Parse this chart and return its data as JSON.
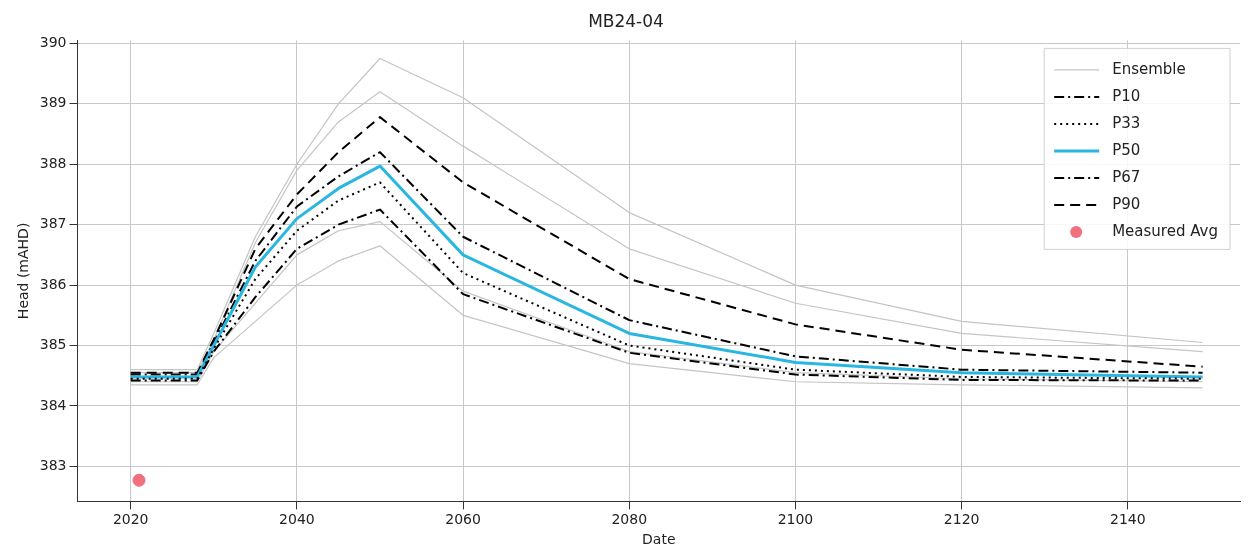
{
  "chart_data": {
    "type": "line",
    "title": "MB24-04",
    "xlabel": "Date",
    "ylabel": "Head (mAHD)",
    "x": [
      2020,
      2028,
      2030,
      2035,
      2040,
      2045,
      2050,
      2060,
      2080,
      2100,
      2120,
      2149
    ],
    "xlim": [
      2013.6,
      2153.5
    ],
    "xticks": [
      2020,
      2040,
      2060,
      2080,
      2100,
      2120,
      2140
    ],
    "ylim": [
      382.42,
      390.05
    ],
    "yticks": [
      383,
      384,
      385,
      386,
      387,
      388,
      389,
      390
    ],
    "grid": true,
    "legend": "top right",
    "series": [
      {
        "name": "Ensemble",
        "color": "#c4c4c4",
        "line_style": "solid",
        "values": [
          384.6,
          384.6,
          385.2,
          386.8,
          388.0,
          389.0,
          389.75,
          389.1,
          387.2,
          386.0,
          385.4,
          385.05
        ]
      },
      {
        "color": "#c4c4c4",
        "line_style": "solid",
        "values": [
          384.55,
          384.55,
          385.1,
          386.7,
          387.9,
          388.7,
          389.2,
          388.3,
          386.6,
          385.7,
          385.2,
          384.9
        ]
      },
      {
        "color": "#c4c4c4",
        "line_style": "solid",
        "values": [
          384.4,
          384.4,
          384.9,
          385.7,
          386.5,
          386.9,
          387.05,
          385.9,
          384.9,
          384.55,
          384.45,
          384.4
        ]
      },
      {
        "color": "#c4c4c4",
        "line_style": "solid",
        "values": [
          384.35,
          384.35,
          384.8,
          385.4,
          386.0,
          386.4,
          386.65,
          385.5,
          384.7,
          384.4,
          384.35,
          384.3
        ]
      },
      {
        "name": "P10",
        "color": "#000000",
        "line_style": "dashdot",
        "values": [
          384.42,
          384.42,
          384.9,
          385.8,
          386.6,
          387.0,
          387.25,
          385.85,
          384.88,
          384.52,
          384.43,
          384.42
        ]
      },
      {
        "name": "P33",
        "color": "#000000",
        "line_style": "dotted",
        "values": [
          384.45,
          384.45,
          384.95,
          386.1,
          386.9,
          387.4,
          387.7,
          386.2,
          385.0,
          384.6,
          384.48,
          384.45
        ]
      },
      {
        "name": "P50",
        "color": "#29b6e0",
        "line_style": "solid",
        "values": [
          384.48,
          384.48,
          385.0,
          386.3,
          387.1,
          387.6,
          387.97,
          386.5,
          385.2,
          384.72,
          384.55,
          384.48
        ]
      },
      {
        "name": "P67",
        "color": "#000000",
        "line_style": "dashdot",
        "values": [
          384.52,
          384.52,
          385.05,
          386.4,
          387.3,
          387.8,
          388.2,
          386.8,
          385.42,
          384.82,
          384.6,
          384.55
        ]
      },
      {
        "name": "P90",
        "color": "#000000",
        "line_style": "dashed",
        "values": [
          384.55,
          384.55,
          385.1,
          386.6,
          387.5,
          388.2,
          388.78,
          387.7,
          386.1,
          385.35,
          384.93,
          384.65
        ]
      },
      {
        "name": "Measured Avg",
        "type": "scatter",
        "marker": "circle",
        "color": "#f07080",
        "x": [
          2021
        ],
        "values": [
          382.77
        ]
      }
    ]
  }
}
